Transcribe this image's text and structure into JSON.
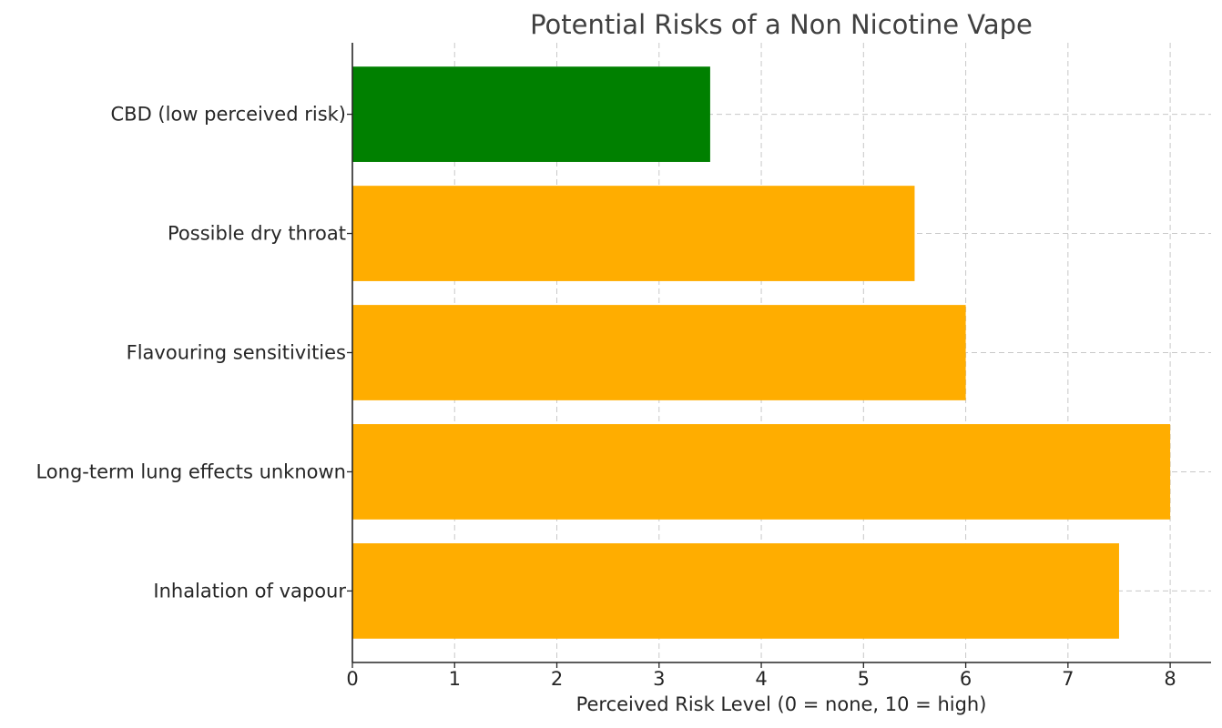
{
  "chart_data": {
    "type": "bar",
    "orientation": "horizontal",
    "title": "Potential Risks of a Non Nicotine Vape",
    "xlabel": "Perceived Risk Level (0 = none, 10 = high)",
    "ylabel": "",
    "categories": [
      "CBD (low perceived risk)",
      "Possible dry throat",
      "Flavouring sensitivities",
      "Long-term lung effects unknown",
      "Inhalation of vapour"
    ],
    "values": [
      3.5,
      5.5,
      6,
      8,
      7.5
    ],
    "bar_colors": [
      "#008000",
      "#ffad00",
      "#ffad00",
      "#ffad00",
      "#ffad00"
    ],
    "xlim": [
      0,
      8.4
    ],
    "xticks": [
      0,
      1,
      2,
      3,
      4,
      5,
      6,
      7,
      8
    ],
    "grid": true,
    "legend": "none"
  }
}
